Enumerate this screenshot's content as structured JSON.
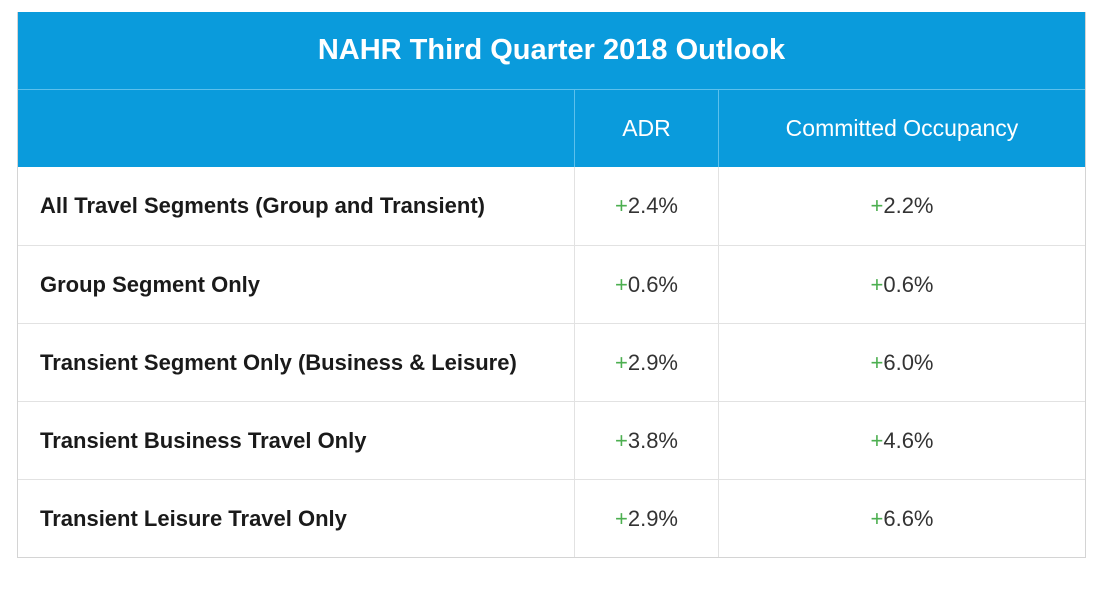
{
  "chart_data": {
    "type": "table",
    "title": "NAHR Third Quarter 2018 Outlook",
    "columns": [
      "",
      "ADR",
      "Committed Occupancy"
    ],
    "rows": [
      {
        "segment": "All Travel Segments (Group and Transient)",
        "adr": "2.4%",
        "occupancy": "2.2%"
      },
      {
        "segment": "Group Segment Only",
        "adr": "0.6%",
        "occupancy": "0.6%"
      },
      {
        "segment": "Transient Segment Only (Business & Leisure)",
        "adr": "2.9%",
        "occupancy": "6.0%"
      },
      {
        "segment": "Transient Business Travel Only",
        "adr": "3.8%",
        "occupancy": "4.6%"
      },
      {
        "segment": "Transient Leisure Travel Only",
        "adr": "2.9%",
        "occupancy": "6.6%"
      }
    ],
    "sign": "+",
    "header_color": "#0a9bdc",
    "positive_sign_color": "#4caf50"
  }
}
